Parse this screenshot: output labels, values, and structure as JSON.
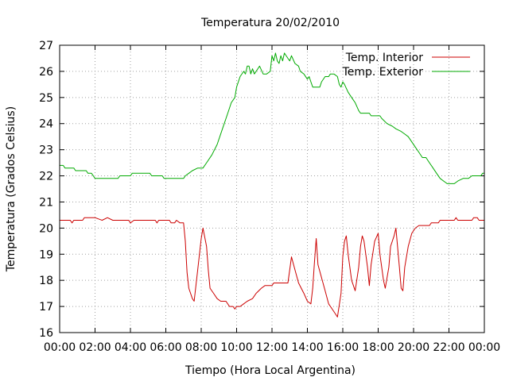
{
  "chart_data": {
    "type": "line",
    "title": "Temperatura 20/02/2010",
    "xlabel": "Tiempo (Hora Local Argentina)",
    "ylabel": "Temperatura (Grados Celsius)",
    "xlim": [
      0,
      24
    ],
    "ylim": [
      16,
      27
    ],
    "x_ticks": [
      {
        "value": 0,
        "label": "00:00"
      },
      {
        "value": 2,
        "label": "02:00"
      },
      {
        "value": 4,
        "label": "04:00"
      },
      {
        "value": 6,
        "label": "06:00"
      },
      {
        "value": 8,
        "label": "08:00"
      },
      {
        "value": 10,
        "label": "10:00"
      },
      {
        "value": 12,
        "label": "12:00"
      },
      {
        "value": 14,
        "label": "14:00"
      },
      {
        "value": 16,
        "label": "16:00"
      },
      {
        "value": 18,
        "label": "18:00"
      },
      {
        "value": 20,
        "label": "20:00"
      },
      {
        "value": 22,
        "label": "22:00"
      },
      {
        "value": 24,
        "label": "00:00"
      }
    ],
    "y_ticks": [
      {
        "value": 16,
        "label": "16"
      },
      {
        "value": 17,
        "label": "17"
      },
      {
        "value": 18,
        "label": "18"
      },
      {
        "value": 19,
        "label": "19"
      },
      {
        "value": 20,
        "label": "20"
      },
      {
        "value": 21,
        "label": "21"
      },
      {
        "value": 22,
        "label": "22"
      },
      {
        "value": 23,
        "label": "23"
      },
      {
        "value": 24,
        "label": "24"
      },
      {
        "value": 25,
        "label": "25"
      },
      {
        "value": 26,
        "label": "26"
      },
      {
        "value": 27,
        "label": "27"
      }
    ],
    "grid": true,
    "legend_position": "top-right",
    "series": [
      {
        "name": "Temp. Interior",
        "color": "#cc0000",
        "points": [
          [
            0,
            20.3
          ],
          [
            0.6,
            20.3
          ],
          [
            0.7,
            20.2
          ],
          [
            0.8,
            20.3
          ],
          [
            1.3,
            20.3
          ],
          [
            1.4,
            20.4
          ],
          [
            1.8,
            20.4
          ],
          [
            2.0,
            20.4
          ],
          [
            2.4,
            20.3
          ],
          [
            2.7,
            20.4
          ],
          [
            3.0,
            20.3
          ],
          [
            3.9,
            20.3
          ],
          [
            4.0,
            20.2
          ],
          [
            4.2,
            20.3
          ],
          [
            5.4,
            20.3
          ],
          [
            5.5,
            20.2
          ],
          [
            5.6,
            20.3
          ],
          [
            6.2,
            20.3
          ],
          [
            6.3,
            20.2
          ],
          [
            6.5,
            20.2
          ],
          [
            6.6,
            20.3
          ],
          [
            6.8,
            20.2
          ],
          [
            7.0,
            20.2
          ],
          [
            7.1,
            19.5
          ],
          [
            7.2,
            18.3
          ],
          [
            7.3,
            17.7
          ],
          [
            7.5,
            17.3
          ],
          [
            7.6,
            17.2
          ],
          [
            7.8,
            18.4
          ],
          [
            8.0,
            19.6
          ],
          [
            8.1,
            20.0
          ],
          [
            8.3,
            19.3
          ],
          [
            8.4,
            18.4
          ],
          [
            8.5,
            17.7
          ],
          [
            8.7,
            17.5
          ],
          [
            8.9,
            17.3
          ],
          [
            9.1,
            17.2
          ],
          [
            9.4,
            17.2
          ],
          [
            9.6,
            17.0
          ],
          [
            9.8,
            17.0
          ],
          [
            9.9,
            16.9
          ],
          [
            10.0,
            17.0
          ],
          [
            10.2,
            17.0
          ],
          [
            10.4,
            17.1
          ],
          [
            10.6,
            17.2
          ],
          [
            10.9,
            17.3
          ],
          [
            11.1,
            17.5
          ],
          [
            11.4,
            17.7
          ],
          [
            11.6,
            17.8
          ],
          [
            12.0,
            17.8
          ],
          [
            12.1,
            17.9
          ],
          [
            12.9,
            17.9
          ],
          [
            13.0,
            18.4
          ],
          [
            13.1,
            18.9
          ],
          [
            13.3,
            18.4
          ],
          [
            13.5,
            17.9
          ],
          [
            13.8,
            17.5
          ],
          [
            14.0,
            17.2
          ],
          [
            14.2,
            17.1
          ],
          [
            14.3,
            17.7
          ],
          [
            14.4,
            18.7
          ],
          [
            14.5,
            19.6
          ],
          [
            14.6,
            18.6
          ],
          [
            14.8,
            18.1
          ],
          [
            15.0,
            17.6
          ],
          [
            15.2,
            17.1
          ],
          [
            15.4,
            16.9
          ],
          [
            15.6,
            16.7
          ],
          [
            15.7,
            16.6
          ],
          [
            15.9,
            17.5
          ],
          [
            16.0,
            18.9
          ],
          [
            16.1,
            19.5
          ],
          [
            16.2,
            19.7
          ],
          [
            16.3,
            19.0
          ],
          [
            16.5,
            18.0
          ],
          [
            16.7,
            17.6
          ],
          [
            16.9,
            18.5
          ],
          [
            17.0,
            19.3
          ],
          [
            17.1,
            19.7
          ],
          [
            17.2,
            19.5
          ],
          [
            17.4,
            18.5
          ],
          [
            17.5,
            17.8
          ],
          [
            17.6,
            18.6
          ],
          [
            17.8,
            19.5
          ],
          [
            18.0,
            19.8
          ],
          [
            18.1,
            19.0
          ],
          [
            18.3,
            18.0
          ],
          [
            18.4,
            17.7
          ],
          [
            18.6,
            18.5
          ],
          [
            18.7,
            19.3
          ],
          [
            18.9,
            19.7
          ],
          [
            19.0,
            20.0
          ],
          [
            19.2,
            18.5
          ],
          [
            19.3,
            17.7
          ],
          [
            19.4,
            17.6
          ],
          [
            19.5,
            18.5
          ],
          [
            19.7,
            19.3
          ],
          [
            19.9,
            19.8
          ],
          [
            20.1,
            20.0
          ],
          [
            20.3,
            20.1
          ],
          [
            20.9,
            20.1
          ],
          [
            21.0,
            20.2
          ],
          [
            21.4,
            20.2
          ],
          [
            21.5,
            20.3
          ],
          [
            22.3,
            20.3
          ],
          [
            22.4,
            20.4
          ],
          [
            22.5,
            20.3
          ],
          [
            23.3,
            20.3
          ],
          [
            23.4,
            20.4
          ],
          [
            23.6,
            20.4
          ],
          [
            23.7,
            20.3
          ],
          [
            24.0,
            20.3
          ]
        ]
      },
      {
        "name": "Temp. Exterior",
        "color": "#00aa00",
        "points": [
          [
            0,
            22.4
          ],
          [
            0.2,
            22.4
          ],
          [
            0.3,
            22.3
          ],
          [
            0.8,
            22.3
          ],
          [
            0.9,
            22.2
          ],
          [
            1.5,
            22.2
          ],
          [
            1.6,
            22.1
          ],
          [
            1.8,
            22.1
          ],
          [
            1.9,
            22.0
          ],
          [
            2.0,
            21.9
          ],
          [
            3.3,
            21.9
          ],
          [
            3.4,
            22.0
          ],
          [
            4.0,
            22.0
          ],
          [
            4.1,
            22.1
          ],
          [
            5.1,
            22.1
          ],
          [
            5.2,
            22.0
          ],
          [
            5.8,
            22.0
          ],
          [
            5.9,
            21.9
          ],
          [
            7.0,
            21.9
          ],
          [
            7.1,
            22.0
          ],
          [
            7.3,
            22.1
          ],
          [
            7.5,
            22.2
          ],
          [
            7.8,
            22.3
          ],
          [
            8.1,
            22.3
          ],
          [
            8.3,
            22.5
          ],
          [
            8.6,
            22.8
          ],
          [
            8.9,
            23.2
          ],
          [
            9.2,
            23.8
          ],
          [
            9.5,
            24.4
          ],
          [
            9.7,
            24.8
          ],
          [
            9.9,
            25.0
          ],
          [
            10.0,
            25.4
          ],
          [
            10.2,
            25.8
          ],
          [
            10.4,
            26.0
          ],
          [
            10.5,
            25.9
          ],
          [
            10.6,
            26.2
          ],
          [
            10.7,
            26.2
          ],
          [
            10.8,
            25.9
          ],
          [
            10.9,
            26.1
          ],
          [
            11.0,
            25.9
          ],
          [
            11.2,
            26.1
          ],
          [
            11.3,
            26.2
          ],
          [
            11.5,
            25.9
          ],
          [
            11.7,
            25.9
          ],
          [
            11.9,
            26.0
          ],
          [
            12.0,
            26.6
          ],
          [
            12.1,
            26.4
          ],
          [
            12.2,
            26.7
          ],
          [
            12.3,
            26.4
          ],
          [
            12.4,
            26.3
          ],
          [
            12.5,
            26.6
          ],
          [
            12.6,
            26.4
          ],
          [
            12.7,
            26.7
          ],
          [
            12.9,
            26.5
          ],
          [
            13.0,
            26.4
          ],
          [
            13.1,
            26.6
          ],
          [
            13.3,
            26.3
          ],
          [
            13.5,
            26.2
          ],
          [
            13.6,
            26.0
          ],
          [
            13.8,
            25.9
          ],
          [
            14.0,
            25.7
          ],
          [
            14.1,
            25.8
          ],
          [
            14.2,
            25.6
          ],
          [
            14.3,
            25.4
          ],
          [
            14.7,
            25.4
          ],
          [
            14.8,
            25.6
          ],
          [
            15.0,
            25.8
          ],
          [
            15.2,
            25.8
          ],
          [
            15.3,
            25.9
          ],
          [
            15.5,
            25.9
          ],
          [
            15.7,
            25.8
          ],
          [
            15.8,
            25.5
          ],
          [
            15.9,
            25.4
          ],
          [
            16.0,
            25.6
          ],
          [
            16.1,
            25.5
          ],
          [
            16.3,
            25.2
          ],
          [
            16.5,
            25.0
          ],
          [
            16.7,
            24.8
          ],
          [
            16.9,
            24.5
          ],
          [
            17.0,
            24.4
          ],
          [
            17.5,
            24.4
          ],
          [
            17.6,
            24.3
          ],
          [
            18.1,
            24.3
          ],
          [
            18.2,
            24.2
          ],
          [
            18.5,
            24.0
          ],
          [
            18.8,
            23.9
          ],
          [
            19.0,
            23.8
          ],
          [
            19.3,
            23.7
          ],
          [
            19.5,
            23.6
          ],
          [
            19.7,
            23.5
          ],
          [
            19.9,
            23.3
          ],
          [
            20.1,
            23.1
          ],
          [
            20.3,
            22.9
          ],
          [
            20.5,
            22.7
          ],
          [
            20.7,
            22.7
          ],
          [
            20.9,
            22.5
          ],
          [
            21.1,
            22.3
          ],
          [
            21.3,
            22.1
          ],
          [
            21.5,
            21.9
          ],
          [
            21.7,
            21.8
          ],
          [
            21.9,
            21.7
          ],
          [
            22.3,
            21.7
          ],
          [
            22.5,
            21.8
          ],
          [
            22.8,
            21.9
          ],
          [
            23.1,
            21.9
          ],
          [
            23.3,
            22.0
          ],
          [
            23.8,
            22.0
          ],
          [
            23.9,
            22.1
          ],
          [
            24.0,
            22.1
          ]
        ]
      }
    ]
  }
}
